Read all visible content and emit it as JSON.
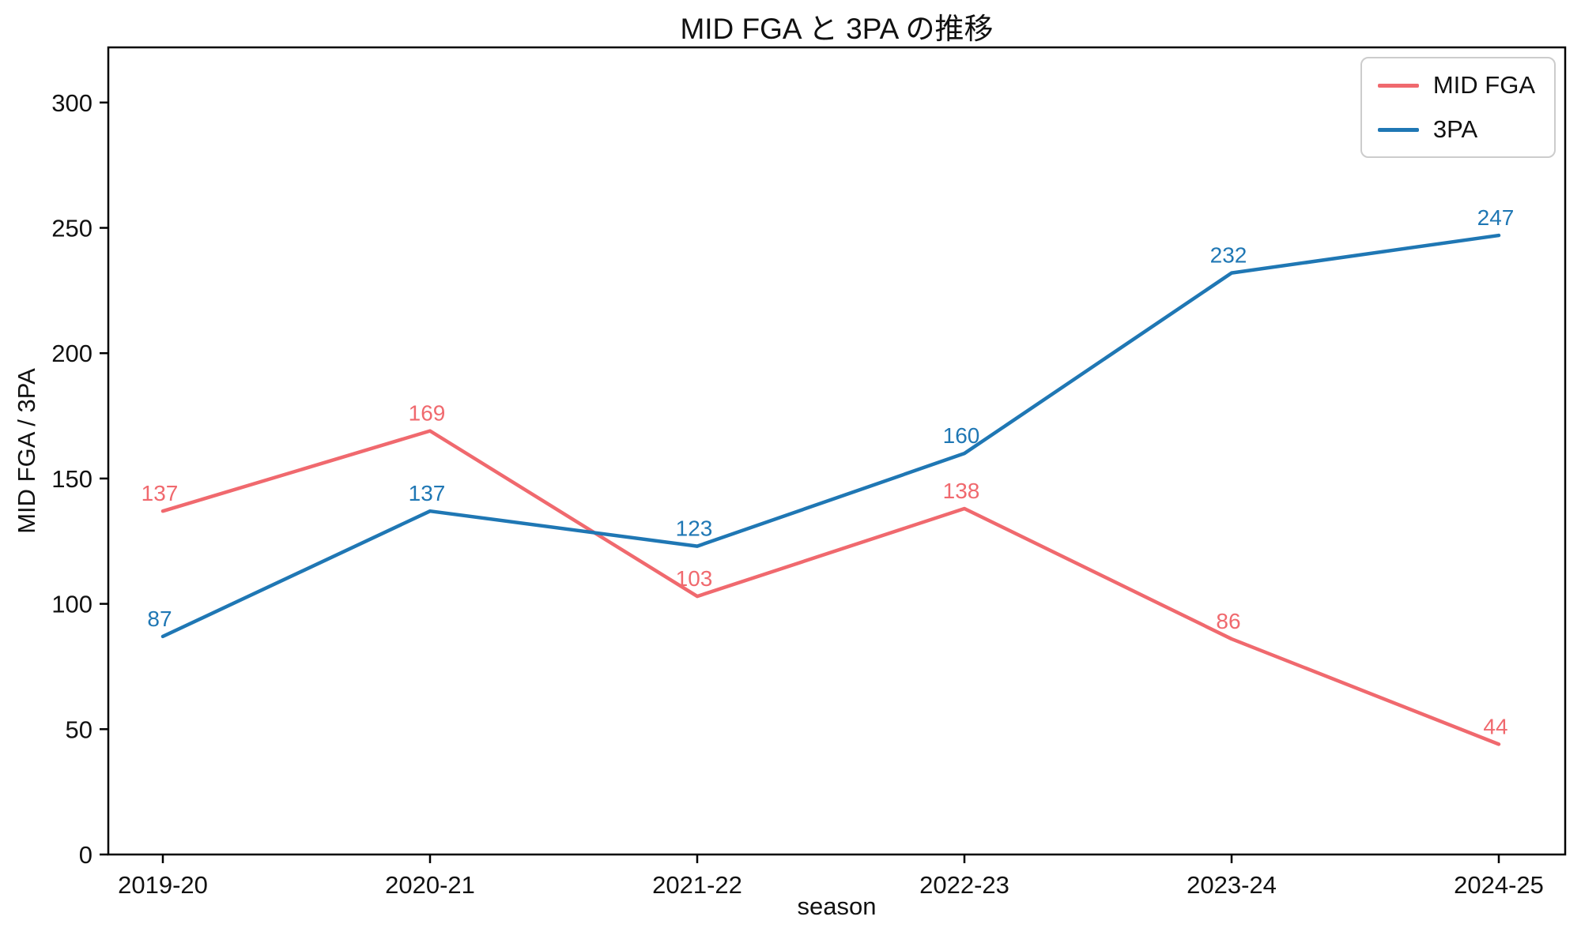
{
  "chart_data": {
    "type": "line",
    "title": "MID FGA と 3PA の推移",
    "xlabel": "season",
    "ylabel": "MID FGA / 3PA",
    "categories": [
      "2019-20",
      "2020-21",
      "2021-22",
      "2022-23",
      "2023-24",
      "2024-25"
    ],
    "series": [
      {
        "name": "MID FGA",
        "color": "#f0696e",
        "values": [
          137,
          169,
          103,
          138,
          86,
          44
        ]
      },
      {
        "name": "3PA",
        "color": "#1f77b4",
        "values": [
          87,
          137,
          123,
          160,
          232,
          247
        ]
      }
    ],
    "yticks": [
      0,
      50,
      100,
      150,
      200,
      250,
      300
    ],
    "ylim": [
      0,
      322
    ],
    "grid": false,
    "legend_position": "top-right",
    "point_labels": true,
    "axis_color": "#000000",
    "text_color": "#111111"
  }
}
